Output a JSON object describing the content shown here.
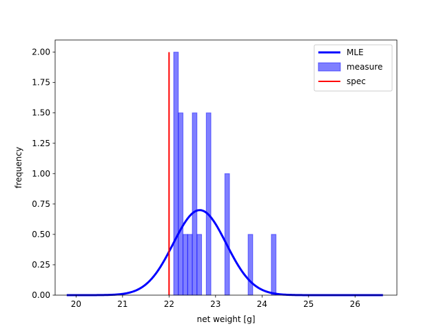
{
  "chart_data": {
    "type": "bar",
    "title": "",
    "xlabel": "net weight [g]",
    "ylabel": "frequency",
    "xlim": [
      19.55,
      26.9
    ],
    "ylim": [
      0,
      2.1
    ],
    "x_ticks": [
      20,
      21,
      22,
      23,
      24,
      25,
      26
    ],
    "x_tick_labels": [
      "20",
      "21",
      "22",
      "23",
      "24",
      "25",
      "26"
    ],
    "y_ticks": [
      0,
      0.25,
      0.5,
      0.75,
      1.0,
      1.25,
      1.5,
      1.75,
      2.0
    ],
    "y_tick_labels": [
      "0.00",
      "0.25",
      "0.50",
      "0.75",
      "1.00",
      "1.25",
      "1.50",
      "1.75",
      "2.00"
    ],
    "grid": false,
    "legend_position": "upper right",
    "histogram": {
      "name": "measure",
      "color": "#0000ff",
      "alpha": 0.5,
      "bin_width": 0.1,
      "bins": [
        {
          "left": 22.1,
          "value": 2.0
        },
        {
          "left": 22.2,
          "value": 1.5
        },
        {
          "left": 22.3,
          "value": 0.5
        },
        {
          "left": 22.4,
          "value": 0.5
        },
        {
          "left": 22.5,
          "value": 1.5
        },
        {
          "left": 22.6,
          "value": 0.5
        },
        {
          "left": 22.8,
          "value": 1.5
        },
        {
          "left": 23.2,
          "value": 1.0
        },
        {
          "left": 23.7,
          "value": 0.5
        },
        {
          "left": 24.2,
          "value": 0.5
        }
      ]
    },
    "series": [
      {
        "name": "MLE",
        "type": "line",
        "color": "#0000ff",
        "distribution": "normal",
        "mean": 22.66,
        "std": 0.57,
        "x_range": [
          19.8,
          26.6
        ]
      },
      {
        "name": "spec",
        "type": "vline",
        "color": "#ff0000",
        "x": 22.0,
        "y_range": [
          0,
          2.0
        ]
      }
    ],
    "legend": [
      {
        "label": "MLE",
        "kind": "line",
        "color": "#0000ff"
      },
      {
        "label": "measure",
        "kind": "patch",
        "color": "#0000ff"
      },
      {
        "label": "spec",
        "kind": "line",
        "color": "#ff0000"
      }
    ]
  }
}
